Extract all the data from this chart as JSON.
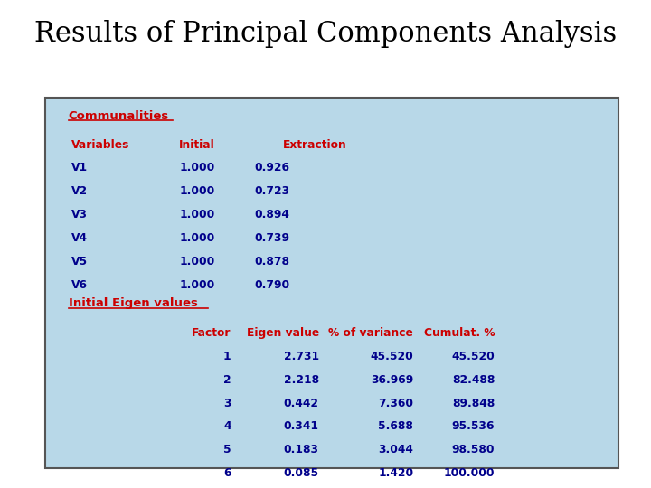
{
  "title": "Results of Principal Components Analysis",
  "title_fontsize": 22,
  "title_color": "#000000",
  "bg_color": "#b8d8e8",
  "box_edge_color": "#555555",
  "red_color": "#cc0000",
  "dark_blue": "#00008B",
  "communalities_header": "Communalities",
  "comm_col_headers": [
    "Variables",
    "Initial",
    "Extraction"
  ],
  "comm_variables": [
    "V1",
    "V2",
    "V3",
    "V4",
    "V5",
    "V6"
  ],
  "comm_initial": [
    "1.000",
    "1.000",
    "1.000",
    "1.000",
    "1.000",
    "1.000"
  ],
  "comm_extraction": [
    "0.926",
    "0.723",
    "0.894",
    "0.739",
    "0.878",
    "0.790"
  ],
  "eigen_header": "Initial Eigen values",
  "eigen_col_headers": [
    "Factor",
    "Eigen value",
    "% of variance",
    "Cumulat. %"
  ],
  "eigen_factors": [
    "1",
    "2",
    "3",
    "4",
    "5",
    "6"
  ],
  "eigen_values": [
    "2.731",
    "2.218",
    "0.442",
    "0.341",
    "0.183",
    "0.085"
  ],
  "eigen_pct_var": [
    "45.520",
    "36.969",
    "7.360",
    "5.688",
    "3.044",
    "1.420"
  ],
  "eigen_cumul": [
    "45.520",
    "82.488",
    "89.848",
    "95.536",
    "98.580",
    "100.000"
  ],
  "fs_title": 22,
  "fs_section": 9.5,
  "fs_body": 8.8
}
